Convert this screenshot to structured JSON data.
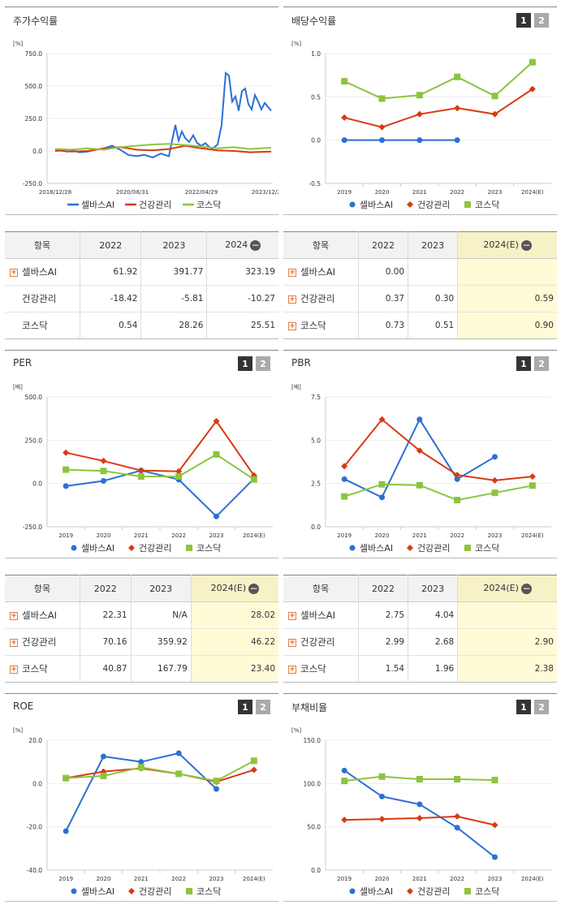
{
  "colors": {
    "selvas": "#2d6fd6",
    "health": "#d93a12",
    "kosdaq": "#8cc43f"
  },
  "legend": [
    "셀바스AI",
    "건강관리",
    "코스닥"
  ],
  "panels": [
    {
      "id": "stock",
      "title": "주가수익률",
      "unit": "[%]",
      "buttons": false,
      "chart_data": {
        "type": "line",
        "ylim": [
          -250,
          750
        ],
        "yticks": [
          "750.0",
          "500.0",
          "250.0",
          "0.0",
          "-250.0"
        ],
        "xticks": [
          "2018/12/28",
          "2020/08/31",
          "2022/04/29",
          "2023/12/28"
        ]
      }
    },
    {
      "id": "dividend",
      "title": "배당수익률",
      "unit": "[%]",
      "buttons": true,
      "chart_data": {
        "type": "line",
        "ylim": [
          -0.5,
          1.0
        ],
        "yticks": [
          "1.0",
          "0.5",
          "0.0",
          "-0.5"
        ],
        "categories": [
          "2019",
          "2020",
          "2021",
          "2022",
          "2023",
          "2024(E)"
        ],
        "series": [
          {
            "name": "셀바스AI",
            "values": [
              0.0,
              0.0,
              0.0,
              0.0,
              null,
              null
            ]
          },
          {
            "name": "건강관리",
            "values": [
              0.26,
              0.15,
              0.3,
              0.37,
              0.3,
              0.59
            ]
          },
          {
            "name": "코스닥",
            "values": [
              0.68,
              0.48,
              0.52,
              0.73,
              0.51,
              0.9
            ]
          }
        ]
      }
    },
    {
      "id": "per",
      "title": "PER",
      "unit": "[배]",
      "buttons": true,
      "chart_data": {
        "type": "line",
        "ylim": [
          -250,
          500
        ],
        "yticks": [
          "500.0",
          "250.0",
          "0.0",
          "-250.0"
        ],
        "categories": [
          "2019",
          "2020",
          "2021",
          "2022",
          "2023",
          "2024(E)"
        ],
        "series": [
          {
            "name": "셀바스AI",
            "values": [
              -15,
              15,
              75,
              22.31,
              -190,
              28.02
            ]
          },
          {
            "name": "건강관리",
            "values": [
              178,
              130,
              75,
              70.16,
              359.92,
              46.22
            ]
          },
          {
            "name": "코스닥",
            "values": [
              80,
              72,
              40,
              40.87,
              167.79,
              23.4
            ]
          }
        ]
      }
    },
    {
      "id": "pbr",
      "title": "PBR",
      "unit": "[배]",
      "buttons": true,
      "chart_data": {
        "type": "line",
        "ylim": [
          0,
          7.5
        ],
        "yticks": [
          "7.5",
          "5.0",
          "2.5",
          "0.0"
        ],
        "categories": [
          "2019",
          "2020",
          "2021",
          "2022",
          "2023",
          "2024(E)"
        ],
        "series": [
          {
            "name": "셀바스AI",
            "values": [
              2.75,
              1.7,
              6.2,
              2.75,
              4.04,
              null
            ]
          },
          {
            "name": "건강관리",
            "values": [
              3.5,
              6.2,
              4.4,
              2.99,
              2.68,
              2.9
            ]
          },
          {
            "name": "코스닥",
            "values": [
              1.75,
              2.45,
              2.4,
              1.54,
              1.96,
              2.38
            ]
          }
        ]
      }
    },
    {
      "id": "roe",
      "title": "ROE",
      "unit": "[%]",
      "buttons": true,
      "chart_data": {
        "type": "line",
        "ylim": [
          -40,
          20
        ],
        "yticks": [
          "20.0",
          "0.0",
          "-20.0",
          "-40.0"
        ],
        "categories": [
          "2019",
          "2020",
          "2021",
          "2022",
          "2023",
          "2024(E)"
        ],
        "series": [
          {
            "name": "셀바스AI",
            "values": [
              -22,
              12.5,
              10,
              14,
              -2.5,
              null
            ]
          },
          {
            "name": "건강관리",
            "values": [
              2.5,
              5.5,
              7,
              4.5,
              0.8,
              6.3
            ]
          },
          {
            "name": "코스닥",
            "values": [
              2.5,
              3.5,
              7.5,
              4.5,
              1.2,
              10.5
            ]
          }
        ]
      }
    },
    {
      "id": "debt",
      "title": "부채비율",
      "unit": "[%]",
      "buttons": true,
      "chart_data": {
        "type": "line",
        "ylim": [
          0,
          150
        ],
        "yticks": [
          "150.0",
          "100.0",
          "50.0",
          "0.0"
        ],
        "categories": [
          "2019",
          "2020",
          "2021",
          "2022",
          "2023",
          "2024(E)"
        ],
        "series": [
          {
            "name": "셀바스AI",
            "values": [
              115,
              85,
              76,
              49,
              15,
              null
            ]
          },
          {
            "name": "건강관리",
            "values": [
              58,
              59,
              60,
              62,
              52,
              null
            ]
          },
          {
            "name": "코스닥",
            "values": [
              103,
              108,
              105,
              105,
              104,
              null
            ]
          }
        ]
      }
    }
  ],
  "tables": [
    {
      "id": "t-stock",
      "header": [
        "항목",
        "2022",
        "2023",
        "2024"
      ],
      "minus": true,
      "hlcol": -1,
      "rows": [
        [
          "셀바스AI",
          "61.92",
          "391.77",
          "323.19",
          true
        ],
        [
          "건강관리",
          "-18.42",
          "-5.81",
          "-10.27",
          false
        ],
        [
          "코스닥",
          "0.54",
          "28.26",
          "25.51",
          false
        ]
      ]
    },
    {
      "id": "t-div",
      "header": [
        "항목",
        "2022",
        "2023",
        "2024(E)"
      ],
      "minus": true,
      "hlcol": 3,
      "rows": [
        [
          "셀바스AI",
          "0.00",
          "",
          "",
          true
        ],
        [
          "건강관리",
          "0.37",
          "0.30",
          "0.59",
          true
        ],
        [
          "코스닥",
          "0.73",
          "0.51",
          "0.90",
          true
        ]
      ]
    },
    {
      "id": "t-per",
      "header": [
        "항목",
        "2022",
        "2023",
        "2024(E)"
      ],
      "minus": true,
      "hlcol": 3,
      "rows": [
        [
          "셀바스AI",
          "22.31",
          "N/A",
          "28.02",
          true
        ],
        [
          "건강관리",
          "70.16",
          "359.92",
          "46.22",
          true
        ],
        [
          "코스닥",
          "40.87",
          "167.79",
          "23.40",
          true
        ]
      ]
    },
    {
      "id": "t-pbr",
      "header": [
        "항목",
        "2022",
        "2023",
        "2024(E)"
      ],
      "minus": true,
      "hlcol": 3,
      "rows": [
        [
          "셀바스AI",
          "2.75",
          "4.04",
          "",
          true
        ],
        [
          "건강관리",
          "2.99",
          "2.68",
          "2.90",
          true
        ],
        [
          "코스닥",
          "1.54",
          "1.96",
          "2.38",
          true
        ]
      ]
    }
  ]
}
